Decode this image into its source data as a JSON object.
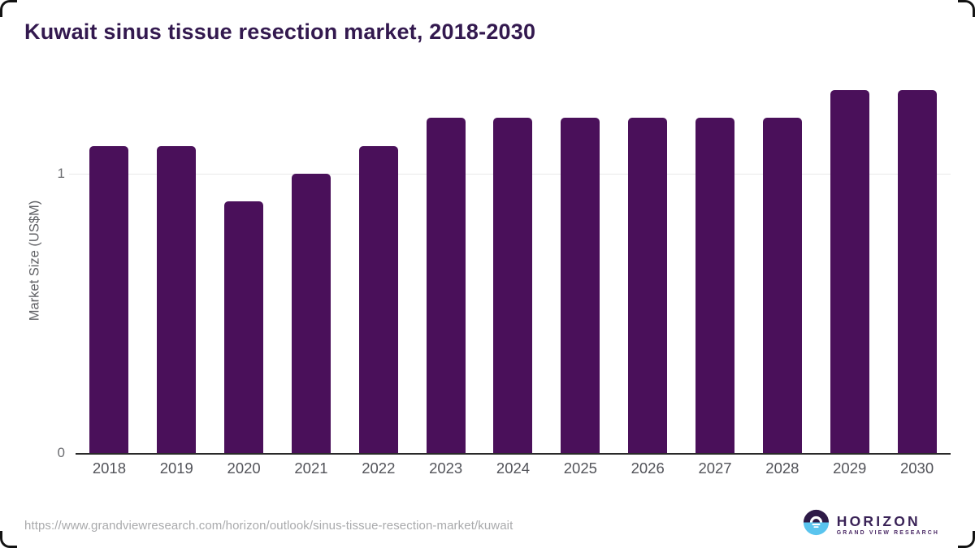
{
  "chart_data": {
    "type": "bar",
    "title": "Kuwait sinus tissue resection market, 2018-2030",
    "categories": [
      "2018",
      "2019",
      "2020",
      "2021",
      "2022",
      "2023",
      "2024",
      "2025",
      "2026",
      "2027",
      "2028",
      "2029",
      "2030"
    ],
    "values": [
      1.1,
      1.1,
      0.9,
      1.0,
      1.1,
      1.2,
      1.2,
      1.2,
      1.2,
      1.2,
      1.2,
      1.3,
      1.3
    ],
    "xlabel": "",
    "ylabel": "Market Size (US$M)",
    "yticks": [
      0,
      1
    ],
    "ylim": [
      0,
      1.375
    ],
    "grid": "single horizontal gridline at y=1",
    "legend_position": "none",
    "bar_color": "#4a105a",
    "title_color": "#33194f",
    "axis_line_color": "#2a2a2a",
    "gridline_color": "#e9e9e9"
  },
  "footer": {
    "source_url": "https://www.grandviewresearch.com/horizon/outlook/sinus-tissue-resection-market/kuwait",
    "logo_text": "HORIZON",
    "logo_subtext": "GRAND VIEW RESEARCH",
    "logo_top_color": "#2e1a47",
    "logo_bottom_color": "#5ac4ee"
  }
}
